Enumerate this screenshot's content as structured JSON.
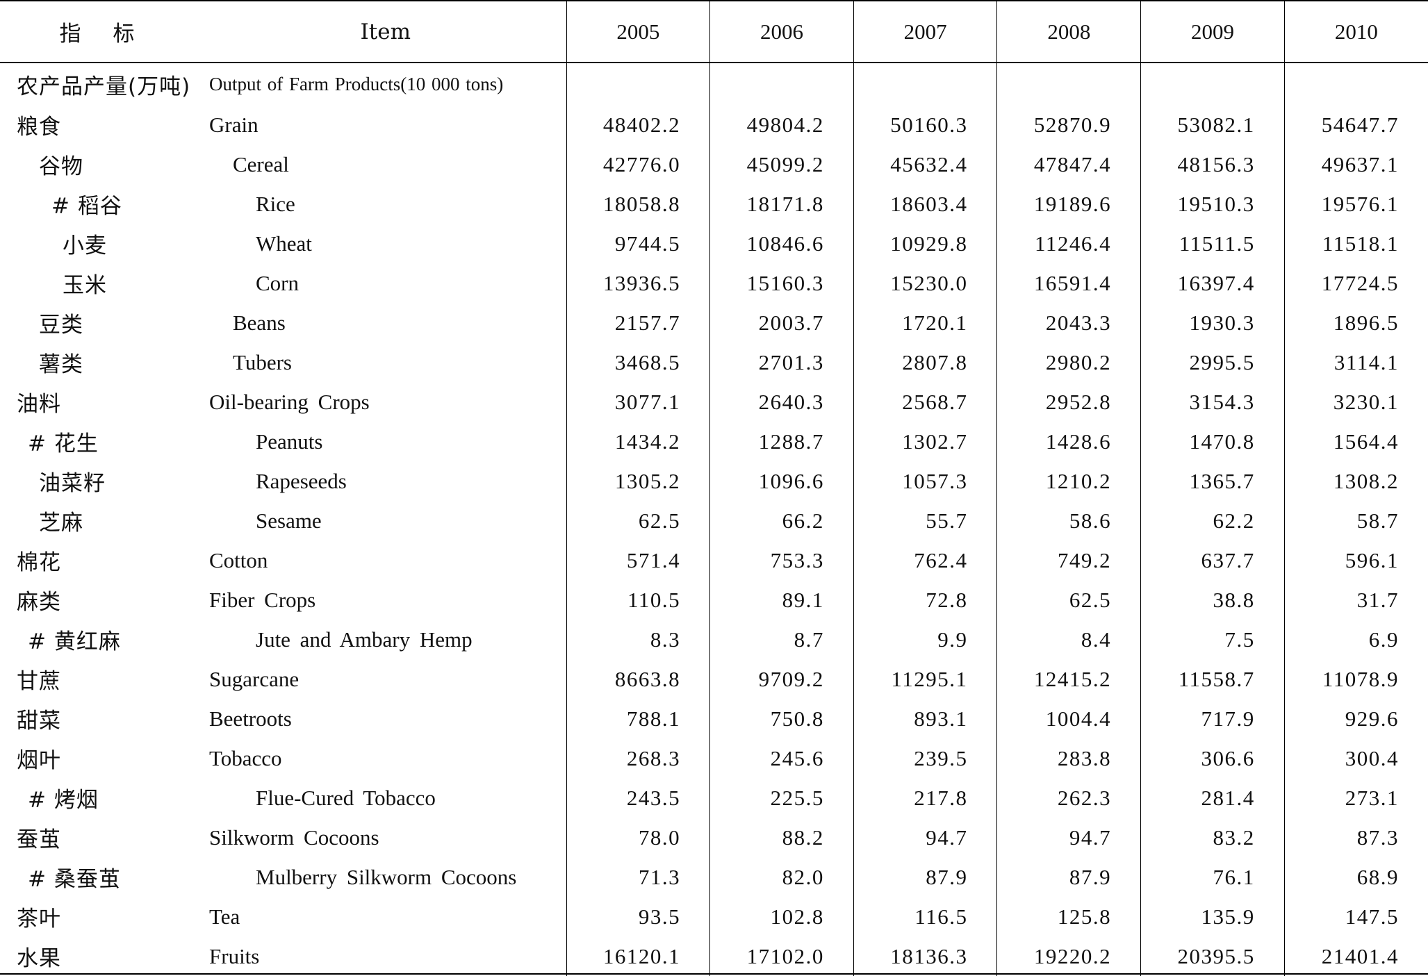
{
  "header": {
    "zh": "指标",
    "en": "Item",
    "years": [
      "2005",
      "2006",
      "2007",
      "2008",
      "2009",
      "2010"
    ]
  },
  "rows": [
    {
      "zh": "农产品产量(万吨)",
      "en": "Output of Farm Products(10 000 tons)",
      "values": [
        "",
        "",
        "",
        "",
        "",
        ""
      ]
    },
    {
      "zh": "粮食",
      "en": "Grain",
      "values": [
        "48402.2",
        "49804.2",
        "50160.3",
        "52870.9",
        "53082.1",
        "54647.7"
      ]
    },
    {
      "zh": "谷物",
      "en": "Cereal",
      "values": [
        "42776.0",
        "45099.2",
        "45632.4",
        "47847.4",
        "48156.3",
        "49637.1"
      ]
    },
    {
      "zh": "# 稻谷",
      "en": "Rice",
      "values": [
        "18058.8",
        "18171.8",
        "18603.4",
        "19189.6",
        "19510.3",
        "19576.1"
      ]
    },
    {
      "zh": "小麦",
      "en": "Wheat",
      "values": [
        "9744.5",
        "10846.6",
        "10929.8",
        "11246.4",
        "11511.5",
        "11518.1"
      ]
    },
    {
      "zh": "玉米",
      "en": "Corn",
      "values": [
        "13936.5",
        "15160.3",
        "15230.0",
        "16591.4",
        "16397.4",
        "17724.5"
      ]
    },
    {
      "zh": "豆类",
      "en": "Beans",
      "values": [
        "2157.7",
        "2003.7",
        "1720.1",
        "2043.3",
        "1930.3",
        "1896.5"
      ]
    },
    {
      "zh": "薯类",
      "en": "Tubers",
      "values": [
        "3468.5",
        "2701.3",
        "2807.8",
        "2980.2",
        "2995.5",
        "3114.1"
      ]
    },
    {
      "zh": "油料",
      "en": "Oil-bearing Crops",
      "values": [
        "3077.1",
        "2640.3",
        "2568.7",
        "2952.8",
        "3154.3",
        "3230.1"
      ]
    },
    {
      "zh": "# 花生",
      "en": "Peanuts",
      "values": [
        "1434.2",
        "1288.7",
        "1302.7",
        "1428.6",
        "1470.8",
        "1564.4"
      ]
    },
    {
      "zh": "油菜籽",
      "en": "Rapeseeds",
      "values": [
        "1305.2",
        "1096.6",
        "1057.3",
        "1210.2",
        "1365.7",
        "1308.2"
      ]
    },
    {
      "zh": "芝麻",
      "en": "Sesame",
      "values": [
        "62.5",
        "66.2",
        "55.7",
        "58.6",
        "62.2",
        "58.7"
      ]
    },
    {
      "zh": "棉花",
      "en": "Cotton",
      "values": [
        "571.4",
        "753.3",
        "762.4",
        "749.2",
        "637.7",
        "596.1"
      ]
    },
    {
      "zh": "麻类",
      "en": "Fiber Crops",
      "values": [
        "110.5",
        "89.1",
        "72.8",
        "62.5",
        "38.8",
        "31.7"
      ]
    },
    {
      "zh": "# 黄红麻",
      "en": "Jute and Ambary Hemp",
      "values": [
        "8.3",
        "8.7",
        "9.9",
        "8.4",
        "7.5",
        "6.9"
      ]
    },
    {
      "zh": "甘蔗",
      "en": "Sugarcane",
      "values": [
        "8663.8",
        "9709.2",
        "11295.1",
        "12415.2",
        "11558.7",
        "11078.9"
      ]
    },
    {
      "zh": "甜菜",
      "en": "Beetroots",
      "values": [
        "788.1",
        "750.8",
        "893.1",
        "1004.4",
        "717.9",
        "929.6"
      ]
    },
    {
      "zh": "烟叶",
      "en": "Tobacco",
      "values": [
        "268.3",
        "245.6",
        "239.5",
        "283.8",
        "306.6",
        "300.4"
      ]
    },
    {
      "zh": "# 烤烟",
      "en": "Flue-Cured Tobacco",
      "values": [
        "243.5",
        "225.5",
        "217.8",
        "262.3",
        "281.4",
        "273.1"
      ]
    },
    {
      "zh": "蚕茧",
      "en": "Silkworm Cocoons",
      "values": [
        "78.0",
        "88.2",
        "94.7",
        "94.7",
        "83.2",
        "87.3"
      ]
    },
    {
      "zh": "# 桑蚕茧",
      "en": "Mulberry Silkworm Cocoons",
      "values": [
        "71.3",
        "82.0",
        "87.9",
        "87.9",
        "76.1",
        "68.9"
      ]
    },
    {
      "zh": "茶叶",
      "en": "Tea",
      "values": [
        "93.5",
        "102.8",
        "116.5",
        "125.8",
        "135.9",
        "147.5"
      ]
    },
    {
      "zh": "水果",
      "en": "Fruits",
      "values": [
        "16120.1",
        "17102.0",
        "18136.3",
        "19220.2",
        "20395.5",
        "21401.4"
      ]
    }
  ]
}
